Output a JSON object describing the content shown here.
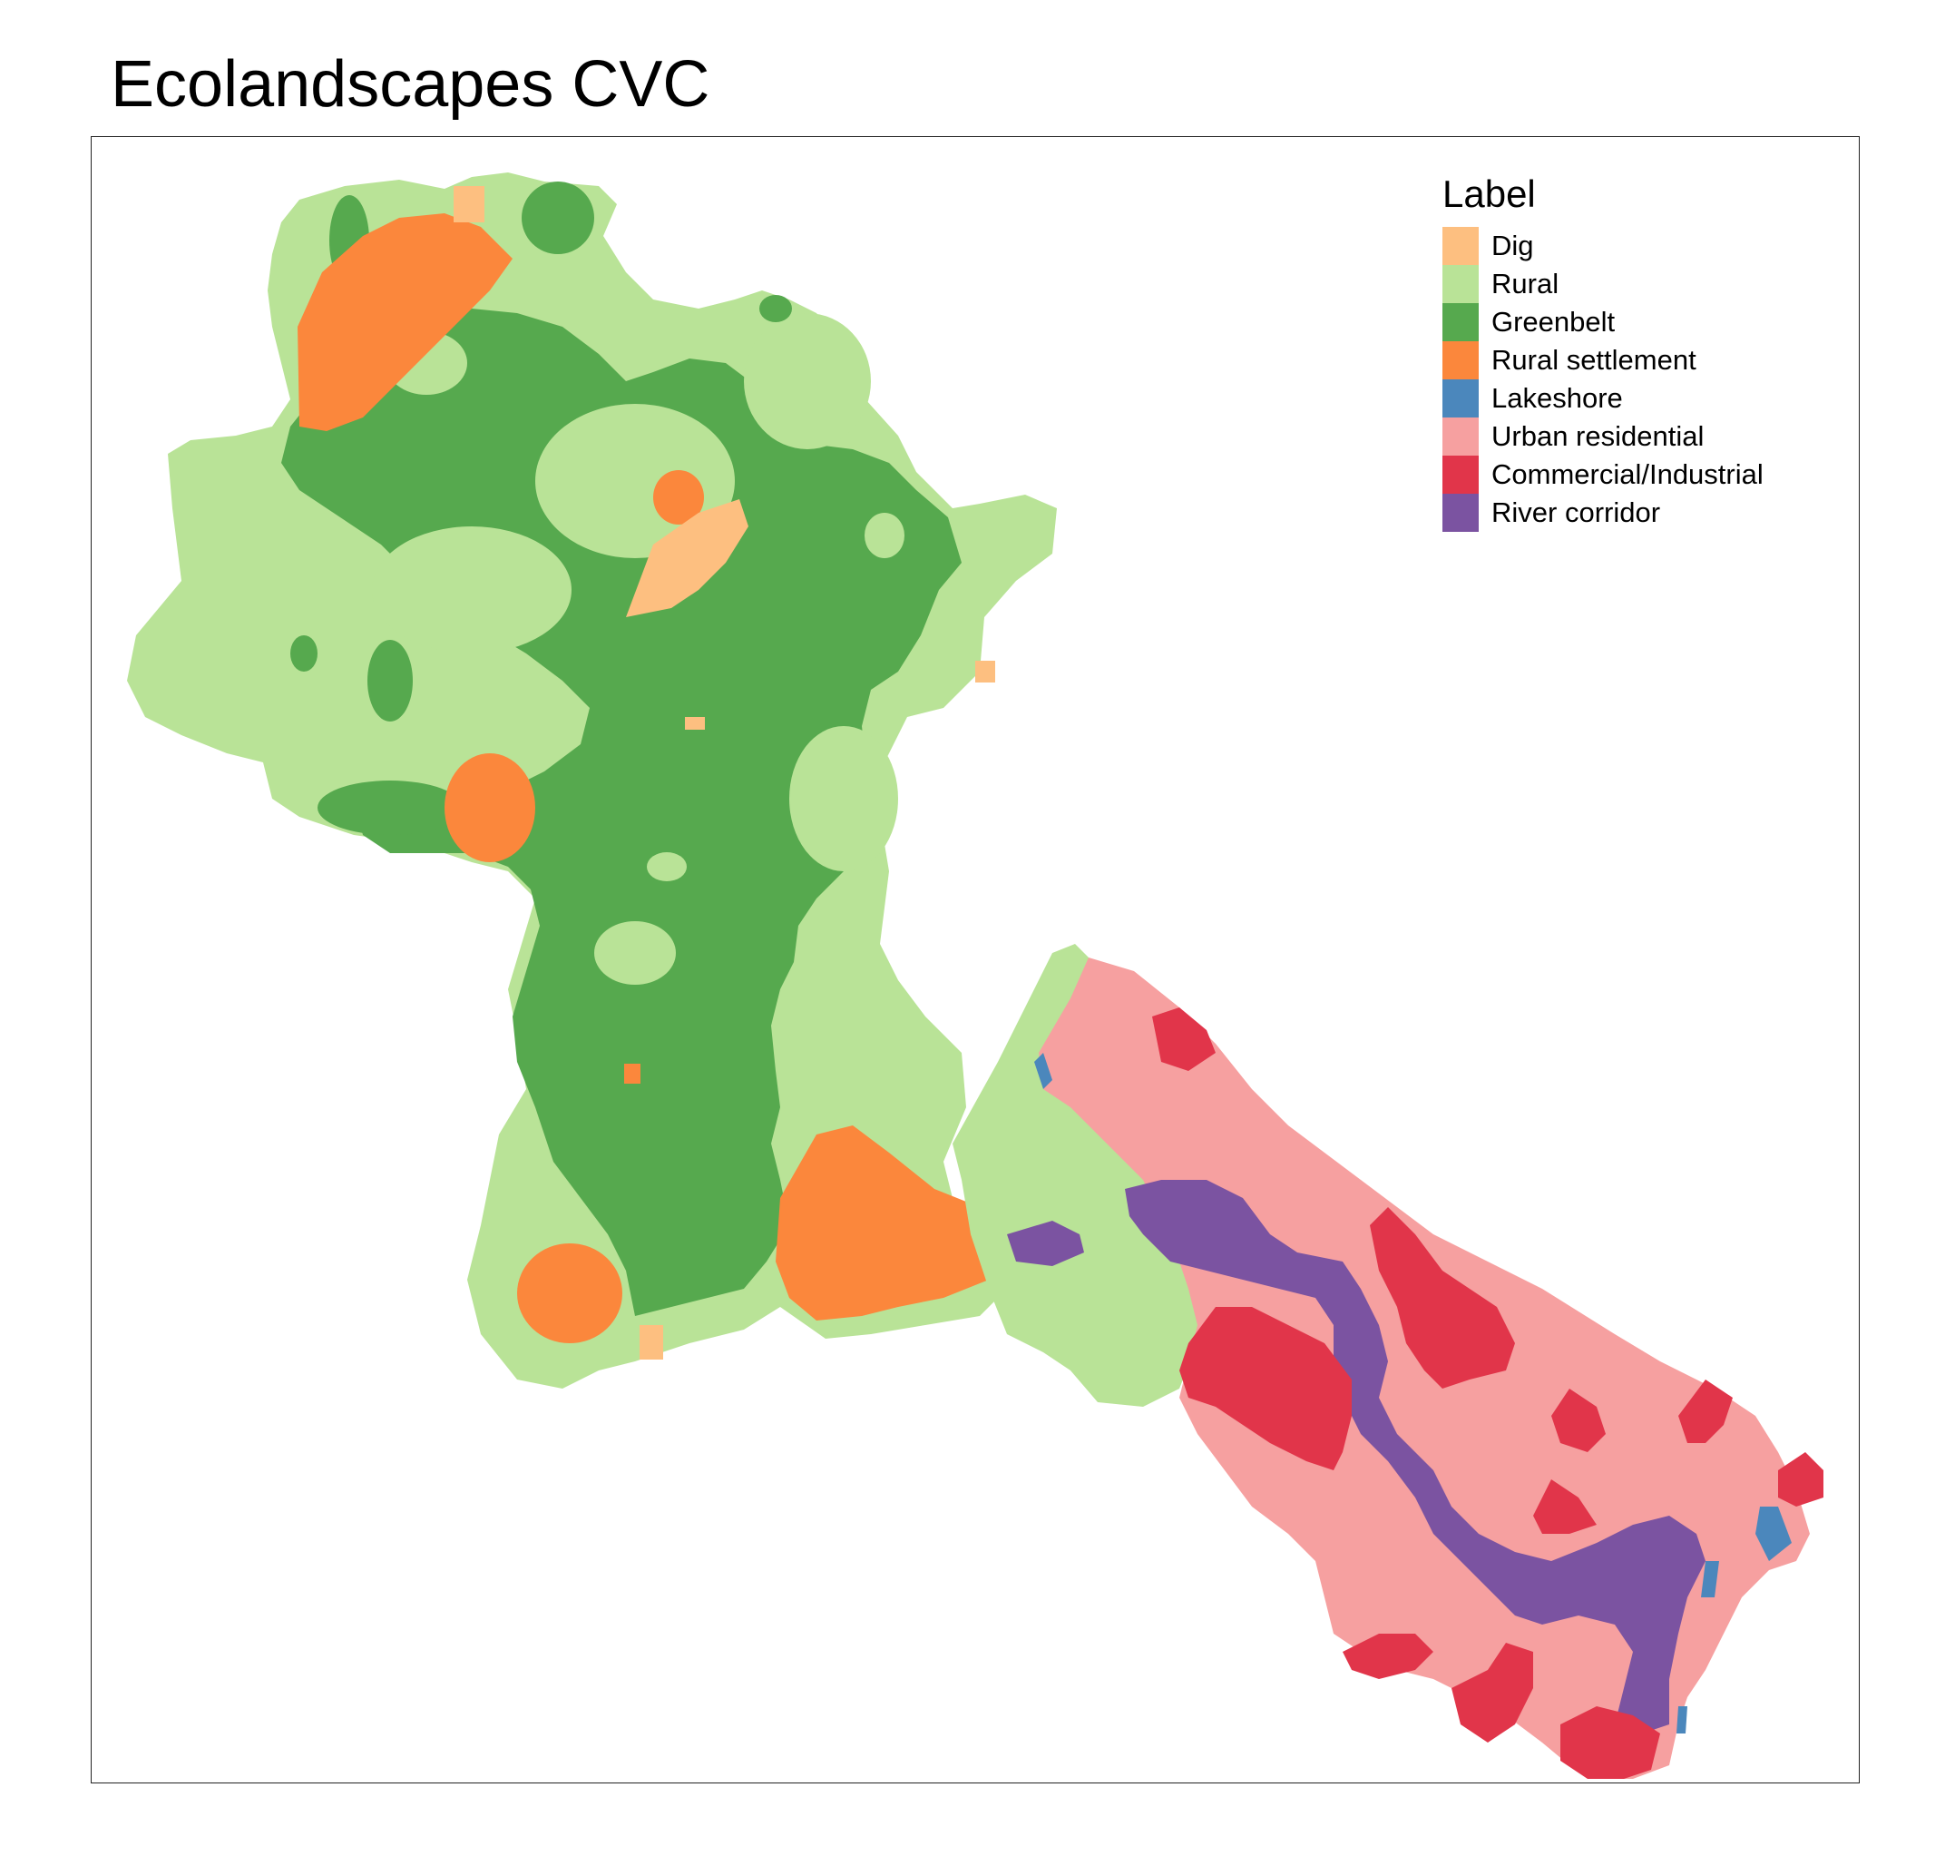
{
  "title": "Ecolandscapes CVC",
  "legend": {
    "title": "Label",
    "items": [
      {
        "label": "Dig",
        "color": "#fdbf80"
      },
      {
        "label": "Rural",
        "color": "#b9e397"
      },
      {
        "label": "Greenbelt",
        "color": "#56a94e"
      },
      {
        "label": "Rural settlement",
        "color": "#fb873c"
      },
      {
        "label": "Lakeshore",
        "color": "#4b87bc"
      },
      {
        "label": "Urban residential",
        "color": "#f6a0a0"
      },
      {
        "label": "Commercial/Industrial",
        "color": "#e1354a"
      },
      {
        "label": "River corridor",
        "color": "#7b53a1"
      }
    ]
  }
}
